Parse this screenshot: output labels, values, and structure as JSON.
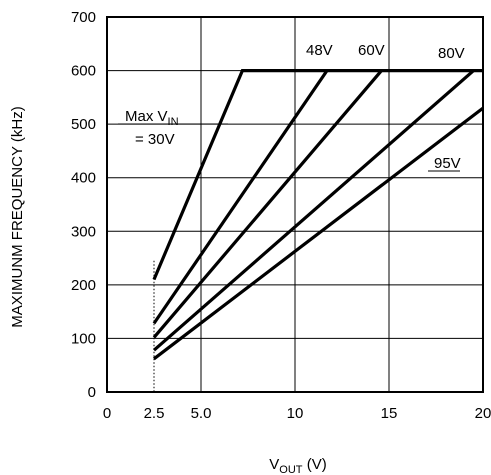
{
  "chart_data": {
    "type": "line",
    "xlabel_main": "V",
    "xlabel_sub": "OUT",
    "xlabel_unit": " (V)",
    "ylabel": "MAXIMUNM FREQUENCY (kHz)",
    "xlim": [
      0,
      20
    ],
    "ylim": [
      0,
      700
    ],
    "x_ticks": [
      0,
      2.5,
      5,
      10,
      15,
      20
    ],
    "x_tick_labels": [
      "0",
      "2.5",
      "5.0",
      "10",
      "15",
      "20"
    ],
    "y_ticks": [
      0,
      100,
      200,
      300,
      400,
      500,
      600,
      700
    ],
    "y_tick_labels": [
      "0",
      "100",
      "200",
      "300",
      "400",
      "500",
      "600",
      "700"
    ],
    "grid": true,
    "min_vout_marker": 2.5,
    "series": [
      {
        "label_line1": "Max V",
        "label_sub": "IN",
        "label_line2": "= 30V",
        "points": [
          [
            2.5,
            210
          ],
          [
            7.2,
            600
          ],
          [
            20,
            600
          ]
        ]
      },
      {
        "label": "48V",
        "points": [
          [
            2.5,
            128
          ],
          [
            11.7,
            600
          ]
        ]
      },
      {
        "label": "60V",
        "points": [
          [
            2.5,
            102
          ],
          [
            14.6,
            600
          ]
        ]
      },
      {
        "label": "80V",
        "points": [
          [
            2.5,
            78
          ],
          [
            19.5,
            600
          ]
        ]
      },
      {
        "label": "95V",
        "points": [
          [
            2.5,
            62
          ],
          [
            20,
            530
          ]
        ]
      }
    ]
  }
}
